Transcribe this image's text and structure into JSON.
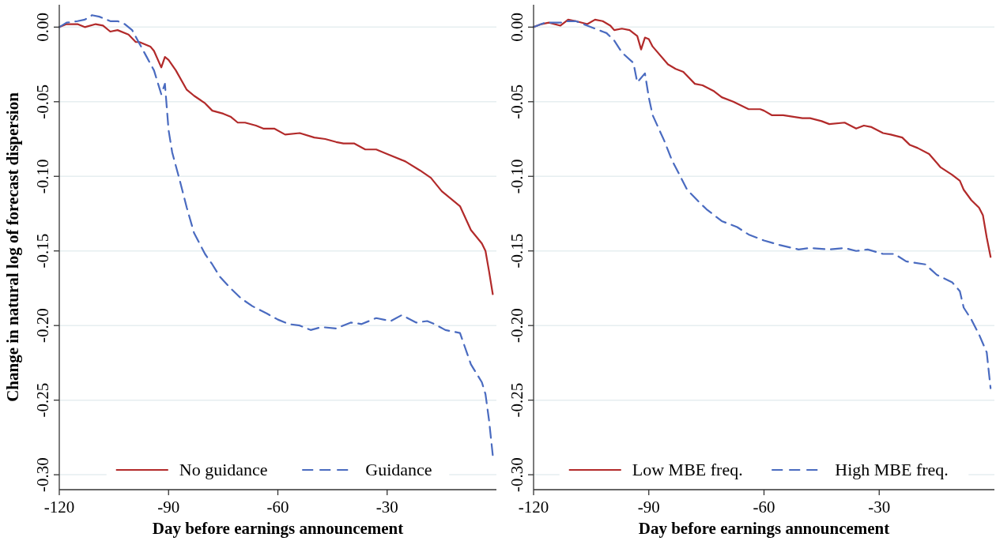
{
  "chart_data": [
    {
      "type": "line",
      "xlabel": "Day before earnings announcement",
      "ylabel": "Change in natural log of forecast dispersion",
      "xlim": [
        -120,
        0
      ],
      "xticks": [
        -120,
        -90,
        -60,
        -30
      ],
      "ylim": [
        -0.31,
        0.015
      ],
      "yticks": [
        {
          "value": 0,
          "label": "0.00"
        },
        {
          "value": -0.05,
          "label": "-0.05"
        },
        {
          "value": -0.1,
          "label": "-0.10"
        },
        {
          "value": -0.15,
          "label": "-0.15"
        },
        {
          "value": -0.2,
          "label": "-0.20"
        },
        {
          "value": -0.25,
          "label": "-0.25"
        },
        {
          "value": -0.3,
          "label": "-0.30"
        }
      ],
      "grid": "y",
      "legend": "bottom",
      "series": [
        {
          "name": "No guidance",
          "color": "#b22a2a",
          "line_style": "solid",
          "x": [
            -120,
            -118,
            -115,
            -113,
            -110,
            -108,
            -106,
            -104,
            -101,
            -99,
            -98,
            -95,
            -94,
            -92,
            -91,
            -90,
            -88,
            -85,
            -83,
            -80,
            -78,
            -75,
            -73,
            -71,
            -69,
            -66,
            -64,
            -61,
            -58,
            -54,
            -50,
            -47,
            -44,
            -42,
            -39,
            -36,
            -33,
            -30,
            -25,
            -21,
            -18,
            -15,
            -10,
            -7,
            -4,
            -3,
            -2,
            -1
          ],
          "values": [
            0,
            0.002,
            0.002,
            0,
            0.002,
            0.001,
            -0.003,
            -0.002,
            -0.005,
            -0.01,
            -0.01,
            -0.013,
            -0.016,
            -0.027,
            -0.02,
            -0.022,
            -0.029,
            -0.042,
            -0.046,
            -0.051,
            -0.056,
            -0.058,
            -0.06,
            -0.064,
            -0.064,
            -0.066,
            -0.068,
            -0.068,
            -0.072,
            -0.071,
            -0.074,
            -0.075,
            -0.077,
            -0.078,
            -0.078,
            -0.082,
            -0.082,
            -0.085,
            -0.09,
            -0.096,
            -0.101,
            -0.11,
            -0.12,
            -0.136,
            -0.145,
            -0.15,
            -0.164,
            -0.179
          ]
        },
        {
          "name": "Guidance",
          "color": "#4a6bc0",
          "line_style": "dashed",
          "x": [
            -120,
            -118,
            -115,
            -113,
            -111,
            -109,
            -106,
            -104,
            -102,
            -100,
            -98,
            -96,
            -94,
            -92,
            -91,
            -90,
            -89,
            -87,
            -85,
            -83,
            -80,
            -78,
            -76,
            -73,
            -70,
            -67,
            -63,
            -60,
            -57,
            -54,
            -51,
            -48,
            -44,
            -40,
            -37,
            -33,
            -29,
            -26,
            -22,
            -19,
            -17,
            -14,
            -10,
            -7,
            -4,
            -3,
            -2,
            -1
          ],
          "values": [
            0,
            0.003,
            0.004,
            0.005,
            0.008,
            0.007,
            0.004,
            0.004,
            0.002,
            -0.002,
            -0.011,
            -0.02,
            -0.029,
            -0.045,
            -0.038,
            -0.069,
            -0.084,
            -0.102,
            -0.121,
            -0.138,
            -0.152,
            -0.159,
            -0.167,
            -0.175,
            -0.182,
            -0.187,
            -0.192,
            -0.196,
            -0.199,
            -0.2,
            -0.203,
            -0.201,
            -0.202,
            -0.198,
            -0.199,
            -0.195,
            -0.197,
            -0.193,
            -0.198,
            -0.197,
            -0.199,
            -0.203,
            -0.205,
            -0.226,
            -0.238,
            -0.246,
            -0.264,
            -0.287
          ]
        }
      ]
    },
    {
      "type": "line",
      "xlabel": "Day before earnings announcement",
      "xlim": [
        -120,
        0
      ],
      "xticks": [
        -120,
        -90,
        -60,
        -30
      ],
      "ylim": [
        -0.31,
        0.015
      ],
      "yticks": [
        {
          "value": 0,
          "label": "0.00"
        },
        {
          "value": -0.05,
          "label": "-0.05"
        },
        {
          "value": -0.1,
          "label": "-0.10"
        },
        {
          "value": -0.15,
          "label": "-0.15"
        },
        {
          "value": -0.2,
          "label": "-0.20"
        },
        {
          "value": -0.25,
          "label": "-0.25"
        },
        {
          "value": -0.3,
          "label": "-0.30"
        }
      ],
      "grid": "y",
      "legend": "bottom",
      "series": [
        {
          "name": "Low MBE freq.",
          "color": "#b22a2a",
          "line_style": "solid",
          "x": [
            -120,
            -118,
            -116,
            -113,
            -111,
            -109,
            -106,
            -104,
            -102,
            -100,
            -99,
            -97,
            -95,
            -93,
            -92,
            -91,
            -90,
            -89,
            -85,
            -83,
            -81,
            -78,
            -76,
            -73,
            -71,
            -68,
            -64,
            -61,
            -60,
            -58,
            -55,
            -50,
            -48,
            -45,
            -43,
            -39,
            -36,
            -34,
            -32,
            -29,
            -27,
            -24,
            -22,
            -20,
            -17,
            -15,
            -14,
            -11,
            -9,
            -8,
            -6,
            -4,
            -3,
            -2,
            -1
          ],
          "values": [
            0,
            0.002,
            0.003,
            0.001,
            0.005,
            0.004,
            0.002,
            0.005,
            0.004,
            0.001,
            -0.002,
            -0.001,
            -0.002,
            -0.006,
            -0.015,
            -0.007,
            -0.008,
            -0.013,
            -0.025,
            -0.028,
            -0.03,
            -0.038,
            -0.039,
            -0.043,
            -0.047,
            -0.05,
            -0.055,
            -0.055,
            -0.056,
            -0.059,
            -0.059,
            -0.061,
            -0.061,
            -0.063,
            -0.065,
            -0.064,
            -0.068,
            -0.066,
            -0.067,
            -0.071,
            -0.072,
            -0.074,
            -0.079,
            -0.081,
            -0.085,
            -0.091,
            -0.094,
            -0.099,
            -0.103,
            -0.109,
            -0.116,
            -0.121,
            -0.126,
            -0.141,
            -0.154
          ]
        },
        {
          "name": "High MBE freq.",
          "color": "#4a6bc0",
          "line_style": "dashed",
          "x": [
            -120,
            -117,
            -113,
            -111,
            -109,
            -106,
            -104,
            -101,
            -99,
            -97,
            -94,
            -93,
            -91,
            -90,
            -89,
            -86,
            -84,
            -82,
            -80,
            -77,
            -75,
            -71,
            -67,
            -64,
            -60,
            -56,
            -51,
            -48,
            -43,
            -39,
            -36,
            -33,
            -29,
            -26,
            -23,
            -18,
            -15,
            -11,
            -9,
            -8,
            -6,
            -4,
            -2,
            -1
          ],
          "values": [
            0,
            0.003,
            0.003,
            0.004,
            0.004,
            0.001,
            -0.001,
            -0.004,
            -0.009,
            -0.017,
            -0.024,
            -0.037,
            -0.031,
            -0.047,
            -0.059,
            -0.076,
            -0.089,
            -0.099,
            -0.109,
            -0.117,
            -0.122,
            -0.13,
            -0.134,
            -0.139,
            -0.143,
            -0.146,
            -0.149,
            -0.148,
            -0.149,
            -0.148,
            -0.15,
            -0.149,
            -0.152,
            -0.152,
            -0.157,
            -0.159,
            -0.166,
            -0.171,
            -0.177,
            -0.188,
            -0.196,
            -0.206,
            -0.218,
            -0.242
          ]
        }
      ]
    }
  ]
}
